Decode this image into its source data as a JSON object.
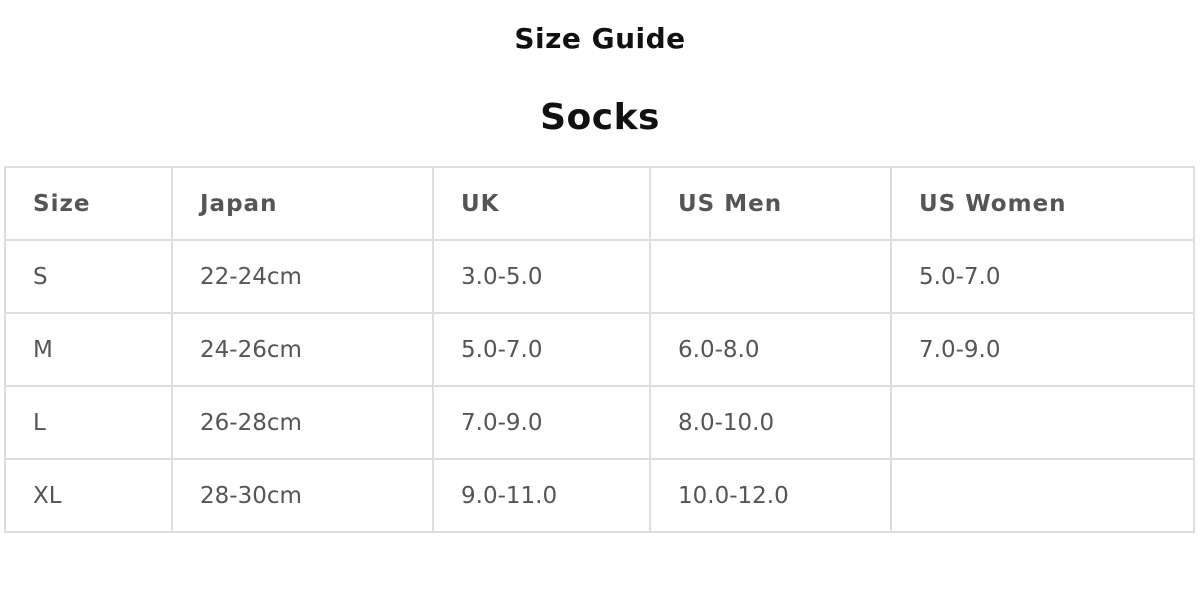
{
  "header": {
    "title": "Size Guide",
    "section": "Socks"
  },
  "table": {
    "columns": [
      "Size",
      "Japan",
      "UK",
      "US Men",
      "US Women"
    ],
    "rows": [
      [
        "S",
        "22-24cm",
        "3.0-5.0",
        "",
        "5.0-7.0"
      ],
      [
        "M",
        "24-26cm",
        "5.0-7.0",
        "6.0-8.0",
        "7.0-9.0"
      ],
      [
        "L",
        "26-28cm",
        "7.0-9.0",
        "8.0-10.0",
        ""
      ],
      [
        "XL",
        "28-30cm",
        "9.0-11.0",
        "10.0-12.0",
        ""
      ]
    ]
  }
}
